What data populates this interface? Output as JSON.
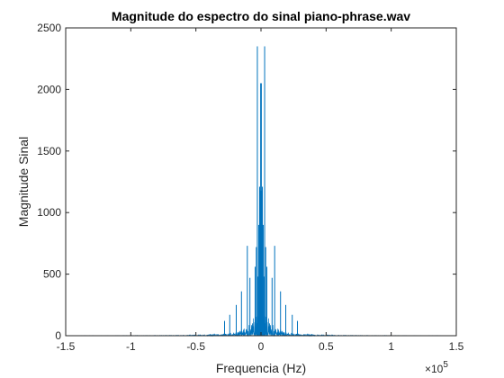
{
  "chart_data": {
    "type": "line",
    "title": "Magnitude do espectro do sinal piano-phrase.wav",
    "xlabel": "Frequencia (Hz)",
    "ylabel": "Magnitude Sinal",
    "x_exponent_base": "×10",
    "x_exponent_power": "5",
    "xlim": [
      -1.5,
      1.5
    ],
    "ylim": [
      0,
      2500
    ],
    "x_ticks": [
      -1.5,
      -1,
      -0.5,
      0,
      0.5,
      1,
      1.5
    ],
    "x_tick_labels": [
      "-1.5",
      "-1",
      "-0.5",
      "0",
      "0.5",
      "1",
      "1.5"
    ],
    "y_ticks": [
      0,
      500,
      1000,
      1500,
      2000,
      2500
    ],
    "y_tick_labels": [
      "0",
      "500",
      "1000",
      "1500",
      "2000",
      "2500"
    ],
    "data_range": [
      -1.4,
      1.4
    ],
    "grid": false,
    "series": [
      {
        "color": "#0072BD",
        "peaks": [
          {
            "x": -0.028,
            "y": 2350
          },
          {
            "x": 0.028,
            "y": 2350
          },
          {
            "x": -0.0027,
            "y": 2050
          },
          {
            "x": 0.0027,
            "y": 2050
          },
          {
            "x": -0.0055,
            "y": 1180
          },
          {
            "x": 0.0055,
            "y": 1180
          },
          {
            "x": -0.0105,
            "y": 1210
          },
          {
            "x": 0.0105,
            "y": 1210
          },
          {
            "x": -0.105,
            "y": 730
          },
          {
            "x": 0.105,
            "y": 730
          },
          {
            "x": -0.017,
            "y": 900
          },
          {
            "x": 0.017,
            "y": 900
          },
          {
            "x": -0.036,
            "y": 720
          },
          {
            "x": 0.036,
            "y": 720
          },
          {
            "x": -0.045,
            "y": 560
          },
          {
            "x": 0.045,
            "y": 560
          },
          {
            "x": -0.022,
            "y": 480
          },
          {
            "x": 0.022,
            "y": 480
          },
          {
            "x": -0.085,
            "y": 470
          },
          {
            "x": 0.085,
            "y": 470
          },
          {
            "x": -0.15,
            "y": 360
          },
          {
            "x": 0.15,
            "y": 360
          },
          {
            "x": -0.19,
            "y": 250
          },
          {
            "x": 0.19,
            "y": 250
          },
          {
            "x": -0.24,
            "y": 170
          },
          {
            "x": 0.24,
            "y": 170
          },
          {
            "x": -0.28,
            "y": 120
          },
          {
            "x": 0.28,
            "y": 120
          }
        ]
      }
    ]
  }
}
